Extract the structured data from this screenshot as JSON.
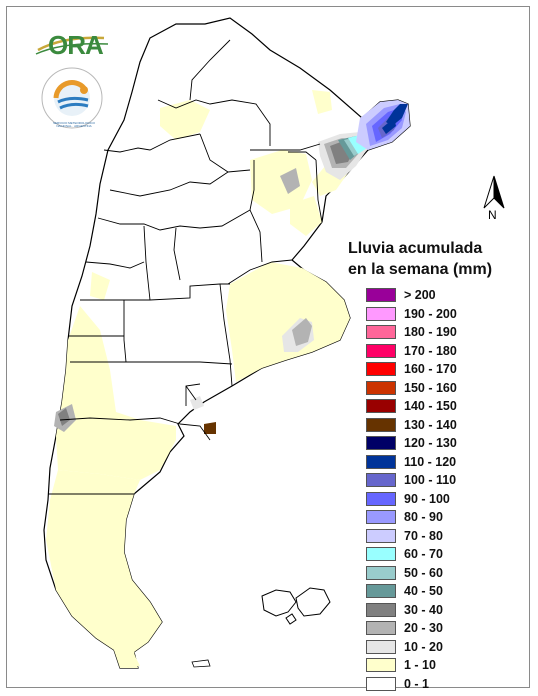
{
  "legend": {
    "title_line1": "Lluvia acumulada",
    "title_line2": "en la semana (mm)",
    "items": [
      {
        "label": "> 200",
        "color": "#990099"
      },
      {
        "label": "190 - 200",
        "color": "#ff99ff"
      },
      {
        "label": "180 - 190",
        "color": "#ff6699"
      },
      {
        "label": "170 - 180",
        "color": "#ff0066"
      },
      {
        "label": "160 - 170",
        "color": "#ff0000"
      },
      {
        "label": "150 - 160",
        "color": "#cc3300"
      },
      {
        "label": "140 - 150",
        "color": "#990000"
      },
      {
        "label": "130 - 140",
        "color": "#663300"
      },
      {
        "label": "120 - 130",
        "color": "#000066"
      },
      {
        "label": "110 - 120",
        "color": "#003399"
      },
      {
        "label": "100 - 110",
        "color": "#6666cc"
      },
      {
        "label": "90 - 100",
        "color": "#6666ff"
      },
      {
        "label": "80 - 90",
        "color": "#9999ff"
      },
      {
        "label": "70 - 80",
        "color": "#ccccff"
      },
      {
        "label": "60 - 70",
        "color": "#99ffff"
      },
      {
        "label": "50 - 60",
        "color": "#99cccc"
      },
      {
        "label": "40 - 50",
        "color": "#669999"
      },
      {
        "label": "30 - 40",
        "color": "#808080"
      },
      {
        "label": "20 - 30",
        "color": "#b3b3b3"
      },
      {
        "label": "10 - 20",
        "color": "#e6e6e6"
      },
      {
        "label": "1 - 10",
        "color": "#ffffcc"
      },
      {
        "label": "0 - 1",
        "color": "#ffffff"
      }
    ]
  },
  "logos": {
    "ora_text": "ORA",
    "smn_text": "SERVICIO METEOROLÓGICO NACIONAL · ARGENTINA"
  },
  "north_label": "N",
  "colors": {
    "boundary": "#000000",
    "light_rain": "#ffffcc",
    "country_fill": "#ffffff"
  }
}
